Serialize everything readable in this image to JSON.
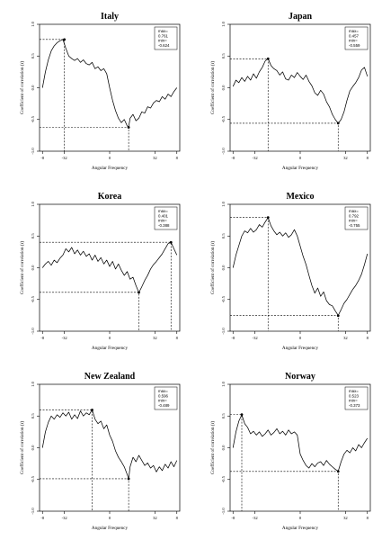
{
  "chart_data": [
    {
      "type": "line",
      "title": "Italy",
      "xlabel": "Angular Frequency",
      "ylabel": "Coefficient of correlation (r)",
      "xlim": [
        -48,
        48
      ],
      "ylim": [
        -1,
        1
      ],
      "xticks": [
        "-8",
        "-32",
        "0",
        "32",
        "8"
      ],
      "yticks": [
        "1.0",
        "0.5",
        "0.0",
        "-0.5",
        "-1.0"
      ],
      "max_label": "max=",
      "max_value": "0.761",
      "min_label": "min=",
      "min_value": "-0.624",
      "max_x": -31,
      "min_x": 13,
      "series": [
        {
          "x": [
            -46,
            -44,
            -42,
            -40,
            -38,
            -36,
            -34,
            -32,
            -30,
            -28,
            -26,
            -24,
            -22,
            -20,
            -18,
            -16,
            -14,
            -12,
            -10,
            -8,
            -6,
            -4,
            -2,
            0,
            2,
            4,
            6,
            8,
            10,
            12,
            13,
            14,
            16,
            18,
            20,
            22,
            24,
            26,
            28,
            30,
            32,
            34,
            36,
            38,
            40,
            42,
            44,
            46
          ],
          "values": [
            0.0,
            0.25,
            0.44,
            0.58,
            0.66,
            0.71,
            0.74,
            0.76,
            0.62,
            0.5,
            0.46,
            0.43,
            0.46,
            0.4,
            0.44,
            0.38,
            0.36,
            0.4,
            0.3,
            0.33,
            0.27,
            0.3,
            0.22,
            0.0,
            -0.2,
            -0.36,
            -0.48,
            -0.55,
            -0.5,
            -0.6,
            -0.62,
            -0.48,
            -0.42,
            -0.52,
            -0.48,
            -0.38,
            -0.4,
            -0.3,
            -0.32,
            -0.24,
            -0.2,
            -0.22,
            -0.14,
            -0.18,
            -0.1,
            -0.14,
            -0.06,
            0.0
          ]
        }
      ]
    },
    {
      "type": "line",
      "title": "Japan",
      "xlabel": "Angular Frequency",
      "ylabel": "Coefficient of correlation (r)",
      "xlim": [
        -48,
        48
      ],
      "ylim": [
        -1,
        1
      ],
      "xticks": [
        "-8",
        "-32",
        "0",
        "32",
        "8"
      ],
      "yticks": [
        "1.0",
        "0.5",
        "0.0",
        "-0.5",
        "-1.0"
      ],
      "max_label": "max=",
      "max_value": "0.457",
      "min_label": "min=",
      "min_value": "-0.559",
      "max_x": -22,
      "min_x": 26,
      "series": [
        {
          "x": [
            -46,
            -44,
            -42,
            -40,
            -38,
            -36,
            -34,
            -32,
            -30,
            -28,
            -26,
            -24,
            -22,
            -20,
            -18,
            -16,
            -14,
            -12,
            -10,
            -8,
            -6,
            -4,
            -2,
            0,
            2,
            4,
            6,
            8,
            10,
            12,
            14,
            16,
            18,
            20,
            22,
            24,
            26,
            28,
            30,
            32,
            34,
            36,
            38,
            40,
            42,
            44,
            46
          ],
          "values": [
            0.02,
            0.12,
            0.08,
            0.16,
            0.1,
            0.18,
            0.12,
            0.22,
            0.15,
            0.25,
            0.32,
            0.42,
            0.46,
            0.35,
            0.3,
            0.27,
            0.2,
            0.25,
            0.14,
            0.12,
            0.2,
            0.16,
            0.24,
            0.18,
            0.13,
            0.2,
            0.1,
            0.03,
            -0.08,
            -0.12,
            -0.04,
            -0.1,
            -0.22,
            -0.3,
            -0.42,
            -0.5,
            -0.56,
            -0.5,
            -0.38,
            -0.2,
            -0.05,
            0.02,
            0.08,
            0.16,
            0.28,
            0.32,
            0.18
          ]
        }
      ]
    },
    {
      "type": "line",
      "title": "Korea",
      "xlabel": "Angular Frequency",
      "ylabel": "Coefficient of correlation (r)",
      "xlim": [
        -48,
        48
      ],
      "ylim": [
        -1,
        1
      ],
      "xticks": [
        "-8",
        "-32",
        "0",
        "32",
        "8"
      ],
      "yticks": [
        "1.0",
        "0.5",
        "0.0",
        "-0.5",
        "-1.0"
      ],
      "max_label": "max=",
      "max_value": "0.401",
      "min_label": "min=",
      "min_value": "-0.388",
      "max_x": 42,
      "min_x": 20,
      "series": [
        {
          "x": [
            -46,
            -44,
            -42,
            -40,
            -38,
            -36,
            -34,
            -32,
            -30,
            -28,
            -26,
            -24,
            -22,
            -20,
            -18,
            -16,
            -14,
            -12,
            -10,
            -8,
            -6,
            -4,
            -2,
            0,
            2,
            4,
            6,
            8,
            10,
            12,
            14,
            16,
            18,
            20,
            22,
            24,
            26,
            28,
            30,
            32,
            34,
            36,
            38,
            40,
            42,
            44,
            46
          ],
          "values": [
            0.0,
            0.06,
            0.1,
            0.04,
            0.12,
            0.08,
            0.15,
            0.2,
            0.3,
            0.25,
            0.32,
            0.22,
            0.28,
            0.2,
            0.26,
            0.18,
            0.22,
            0.12,
            0.2,
            0.1,
            0.16,
            0.06,
            0.12,
            0.02,
            0.1,
            -0.02,
            0.06,
            -0.04,
            -0.12,
            -0.06,
            -0.18,
            -0.15,
            -0.28,
            -0.39,
            -0.3,
            -0.2,
            -0.12,
            -0.02,
            0.05,
            0.1,
            0.16,
            0.22,
            0.3,
            0.38,
            0.4,
            0.3,
            0.2
          ]
        }
      ]
    },
    {
      "type": "line",
      "title": "Mexico",
      "xlabel": "Angular Frequency",
      "ylabel": "Coefficient of correlation (r)",
      "xlim": [
        -48,
        48
      ],
      "ylim": [
        -1,
        1
      ],
      "xticks": [
        "-8",
        "-32",
        "0",
        "32",
        "8"
      ],
      "yticks": [
        "1.0",
        "0.5",
        "0.0",
        "-0.5",
        "-1.0"
      ],
      "max_label": "max=",
      "max_value": "0.792",
      "min_label": "min=",
      "min_value": "-0.755",
      "max_x": -22,
      "min_x": 26,
      "series": [
        {
          "x": [
            -46,
            -44,
            -42,
            -40,
            -38,
            -36,
            -34,
            -32,
            -30,
            -28,
            -26,
            -24,
            -22,
            -20,
            -18,
            -16,
            -14,
            -12,
            -10,
            -8,
            -6,
            -4,
            -2,
            0,
            2,
            4,
            6,
            8,
            10,
            12,
            14,
            16,
            18,
            20,
            22,
            24,
            26,
            28,
            30,
            32,
            34,
            36,
            38,
            40,
            42,
            44,
            46
          ],
          "values": [
            0.0,
            0.2,
            0.35,
            0.5,
            0.58,
            0.55,
            0.62,
            0.56,
            0.6,
            0.68,
            0.64,
            0.72,
            0.79,
            0.66,
            0.58,
            0.52,
            0.56,
            0.5,
            0.55,
            0.48,
            0.52,
            0.6,
            0.5,
            0.34,
            0.18,
            0.05,
            -0.12,
            -0.28,
            -0.4,
            -0.32,
            -0.45,
            -0.38,
            -0.52,
            -0.58,
            -0.6,
            -0.68,
            -0.75,
            -0.66,
            -0.56,
            -0.5,
            -0.42,
            -0.34,
            -0.28,
            -0.2,
            -0.1,
            0.05,
            0.22
          ]
        }
      ]
    },
    {
      "type": "line",
      "title": "New Zealand",
      "xlabel": "Angular Frequency",
      "ylabel": "Coefficient of correlation (r)",
      "xlim": [
        -48,
        48
      ],
      "ylim": [
        -1,
        1
      ],
      "xticks": [
        "-8",
        "-32",
        "0",
        "32",
        "8"
      ],
      "yticks": [
        "1.0",
        "0.5",
        "0.0",
        "-0.5",
        "-1.0"
      ],
      "max_label": "max=",
      "max_value": "0.596",
      "min_label": "min=",
      "min_value": "-0.489",
      "max_x": -12,
      "min_x": 13,
      "series": [
        {
          "x": [
            -46,
            -44,
            -42,
            -40,
            -38,
            -36,
            -34,
            -32,
            -30,
            -28,
            -26,
            -24,
            -22,
            -20,
            -18,
            -16,
            -14,
            -12,
            -10,
            -8,
            -6,
            -4,
            -2,
            0,
            2,
            4,
            6,
            8,
            10,
            12,
            13,
            14,
            16,
            18,
            20,
            22,
            24,
            26,
            28,
            30,
            32,
            34,
            36,
            38,
            40,
            42,
            44,
            46
          ],
          "values": [
            0.0,
            0.25,
            0.4,
            0.5,
            0.45,
            0.52,
            0.48,
            0.55,
            0.5,
            0.56,
            0.45,
            0.52,
            0.46,
            0.58,
            0.5,
            0.55,
            0.52,
            0.6,
            0.45,
            0.38,
            0.42,
            0.3,
            0.36,
            0.2,
            0.1,
            -0.05,
            -0.15,
            -0.22,
            -0.3,
            -0.42,
            -0.49,
            -0.3,
            -0.15,
            -0.22,
            -0.12,
            -0.2,
            -0.28,
            -0.24,
            -0.32,
            -0.28,
            -0.38,
            -0.3,
            -0.36,
            -0.26,
            -0.32,
            -0.22,
            -0.3,
            -0.2
          ]
        }
      ]
    },
    {
      "type": "line",
      "title": "Norway",
      "xlabel": "Angular Frequency",
      "ylabel": "Coefficient of correlation (r)",
      "xlim": [
        -48,
        48
      ],
      "ylim": [
        -1,
        1
      ],
      "xticks": [
        "-8",
        "-32",
        "0",
        "32",
        "8"
      ],
      "yticks": [
        "1.0",
        "0.5",
        "0.0",
        "-0.5",
        "-1.0"
      ],
      "max_label": "max=",
      "max_value": "0.523",
      "min_label": "min=",
      "min_value": "-0.373",
      "max_x": -40,
      "min_x": 26,
      "series": [
        {
          "x": [
            -46,
            -44,
            -42,
            -40,
            -38,
            -36,
            -34,
            -32,
            -30,
            -28,
            -26,
            -24,
            -22,
            -20,
            -18,
            -16,
            -14,
            -12,
            -10,
            -8,
            -6,
            -4,
            -2,
            0,
            2,
            4,
            6,
            8,
            10,
            12,
            14,
            16,
            18,
            20,
            22,
            24,
            26,
            28,
            30,
            32,
            34,
            36,
            38,
            40,
            42,
            44,
            46
          ],
          "values": [
            0.0,
            0.25,
            0.42,
            0.52,
            0.38,
            0.32,
            0.22,
            0.26,
            0.2,
            0.25,
            0.18,
            0.22,
            0.28,
            0.2,
            0.24,
            0.3,
            0.22,
            0.26,
            0.2,
            0.28,
            0.22,
            0.25,
            0.2,
            -0.1,
            -0.2,
            -0.28,
            -0.32,
            -0.25,
            -0.3,
            -0.24,
            -0.22,
            -0.28,
            -0.2,
            -0.26,
            -0.3,
            -0.34,
            -0.37,
            -0.22,
            -0.1,
            -0.04,
            -0.08,
            0.0,
            -0.05,
            0.05,
            0.0,
            0.08,
            0.15
          ]
        }
      ]
    }
  ]
}
